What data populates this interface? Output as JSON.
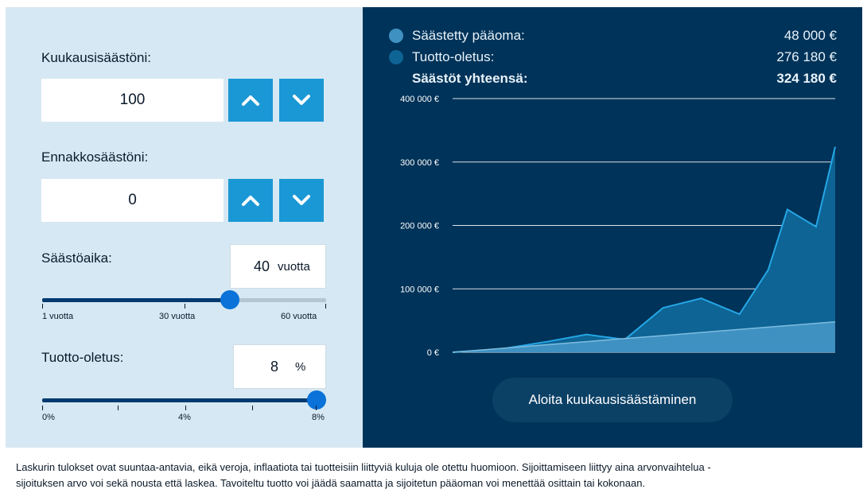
{
  "calculator": {
    "monthly": {
      "label": "Kuukausisäästöni:",
      "value": "100"
    },
    "advance": {
      "label": "Ennakkosäästöni:",
      "value": "0"
    },
    "period": {
      "label": "Säästöaika:",
      "value": "40",
      "unit": "vuotta",
      "min_label": "1 vuotta",
      "mid_label": "30 vuotta",
      "max_label": "60 vuotta",
      "min": 1,
      "max": 60,
      "current": 40
    },
    "return": {
      "label": "Tuotto-oletus:",
      "value": "8",
      "unit": "%",
      "min_label": "0%",
      "mid_label": "4%",
      "max_label": "8%",
      "min": 0,
      "max": 8,
      "current": 8
    },
    "icons": {
      "increment": "chevron-up-icon",
      "decrement": "chevron-down-icon"
    }
  },
  "summary": {
    "rows": [
      {
        "label": "Säästetty pääoma:",
        "value": "48 000 €",
        "color": "#3f91c2"
      },
      {
        "label": "Tuotto-oletus:",
        "value": "276 180 €",
        "color": "#0e6494"
      },
      {
        "label": "Säästöt yhteensä:",
        "value": "324 180 €"
      }
    ]
  },
  "chart_data": {
    "type": "area",
    "y_ticks": [
      "0 €",
      "100 000 €",
      "200 000 €",
      "300 000 €",
      "400 000 €"
    ],
    "ylim": [
      0,
      400000
    ],
    "x": [
      0,
      5,
      10,
      14,
      18,
      22,
      26,
      30,
      33,
      35,
      38,
      40
    ],
    "series": [
      {
        "name": "Säästetty pääoma",
        "color": "#3f91c2",
        "values": [
          0,
          6000,
          12000,
          16800,
          21600,
          26400,
          31200,
          36000,
          39600,
          42000,
          45600,
          48000
        ]
      },
      {
        "name": "Säästöt yhteensä",
        "color": "#0e6494",
        "line_color": "#24a6e6",
        "values": [
          0,
          5000,
          17000,
          28000,
          20000,
          70000,
          85000,
          60000,
          130000,
          225000,
          198000,
          324000
        ]
      }
    ],
    "grid": true
  },
  "cta": {
    "label": "Aloita kuukausisäästäminen"
  },
  "disclaimer": {
    "line1": "Laskurin tulokset ovat suuntaa-antavia, eikä veroja, inflaatiota tai tuotteisiin liittyviä kuluja ole otettu huomioon. Sijoittamiseen liittyy aina arvonvaihtelua -",
    "line2": "sijoituksen arvo voi sekä nousta että laskea. Tavoiteltu tuotto voi jäädä saamatta ja sijoitetun pääoman voi menettää osittain tai kokonaan."
  }
}
